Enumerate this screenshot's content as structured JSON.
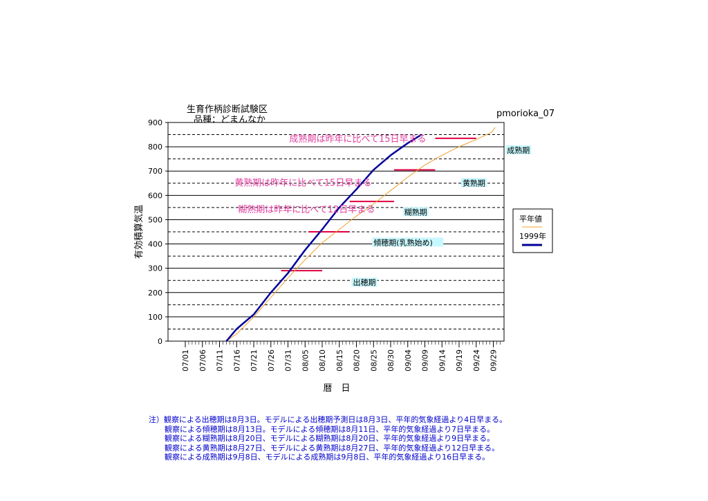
{
  "chart_data": {
    "type": "line",
    "title": "生育作柄診断試験区",
    "subtitle": "品種：どまんなか",
    "station": "pmorioka_07",
    "ylabel": "有効積算気温",
    "xlabel": "暦　日",
    "ylim": [
      0,
      900
    ],
    "yticks": [
      0,
      100,
      200,
      300,
      400,
      500,
      600,
      700,
      800,
      900
    ],
    "x_tick_labels": [
      "07/01",
      "07/06",
      "07/11",
      "07/16",
      "07/21",
      "07/26",
      "07/31",
      "08/05",
      "08/10",
      "08/15",
      "08/20",
      "08/25",
      "08/30",
      "09/04",
      "09/09",
      "09/14",
      "09/19",
      "09/24",
      "09/29"
    ],
    "grid": {
      "solid": [
        100,
        200,
        300,
        400,
        500,
        600,
        700,
        800,
        900
      ],
      "dashed": [
        50,
        150,
        250,
        350,
        450,
        550,
        650,
        750,
        850
      ]
    },
    "legend": {
      "title": "",
      "entries": [
        {
          "name": "平年値",
          "color": "#f0a030"
        },
        {
          "name": "1999年",
          "color": "#000099"
        }
      ],
      "placement": "right"
    },
    "series": [
      {
        "name": "平年値",
        "color": "#f0a030",
        "x": [
          "07/13",
          "07/16",
          "07/21",
          "07/26",
          "07/31",
          "08/05",
          "08/10",
          "08/15",
          "08/20",
          "08/25",
          "08/30",
          "09/04",
          "09/09",
          "09/14",
          "09/19",
          "09/24",
          "09/29",
          "10/01"
        ],
        "values": [
          0,
          30,
          100,
          180,
          260,
          335,
          405,
          460,
          515,
          565,
          620,
          675,
          725,
          765,
          800,
          830,
          860,
          880
        ]
      },
      {
        "name": "1999年",
        "color": "#000099",
        "x": [
          "07/13",
          "07/16",
          "07/21",
          "07/26",
          "07/31",
          "08/05",
          "08/10",
          "08/15",
          "08/20",
          "08/25",
          "08/30",
          "09/04",
          "09/08"
        ],
        "values": [
          0,
          50,
          110,
          200,
          280,
          375,
          460,
          550,
          625,
          705,
          765,
          815,
          850
        ]
      }
    ],
    "stage_bars": [
      {
        "stage": "出穂期",
        "from": "07/29",
        "to": "08/10",
        "y": 290
      },
      {
        "stage": "傾穂期",
        "from": "08/06",
        "to": "08/18",
        "y": 450
      },
      {
        "stage": "糊熟期",
        "from": "08/18",
        "to": "08/31",
        "y": 575
      },
      {
        "stage": "黄熟期",
        "from": "08/31",
        "to": "09/12",
        "y": 705
      },
      {
        "stage": "成熟期",
        "from": "09/12",
        "to": "09/24",
        "y": 835
      }
    ],
    "stage_labels": [
      {
        "text": "出穂期",
        "x": "08/19",
        "y": 230
      },
      {
        "text": "傾穂期(乳熟始め)",
        "x": "08/25",
        "y": 395
      },
      {
        "text": "糊熟期",
        "x": "09/03",
        "y": 520
      },
      {
        "text": "黄熟期",
        "x": "09/20",
        "y": 640
      },
      {
        "text": "成熟期",
        "x": "10/03",
        "y": 775
      }
    ],
    "annotations": [
      {
        "text": "成熟期は昨年に比べて15日早まる",
        "x": "07/31",
        "y": 820
      },
      {
        "text": "黄熟期は昨年に比べて15日早まる",
        "x": "07/15",
        "y": 640
      },
      {
        "text": "糊熟期は昨年に比べて12日早まる",
        "x": "07/16",
        "y": 530
      }
    ]
  },
  "notes": [
    "注）観察による出穂期は8月3日。モデルによる出穂期予測日は8月3日、平年的気象経過より4日早まる。",
    "観察による傾穂期は8月13日。モデルによる傾穂期は8月11日、平年的気象経過より7日早まる。",
    "観察による糊熟期は8月20日、モデルによる糊熟期は8月20日、平年的気象経過より9日早まる。",
    "観察による黄熟期は8月27日、モデルによる黄熟期は8月27日、平年的気象経過より12日早まる。",
    "観察による成熟期は9月8日、モデルによる成熟期は9月8日、平年的気象経過より16日早まる。"
  ]
}
